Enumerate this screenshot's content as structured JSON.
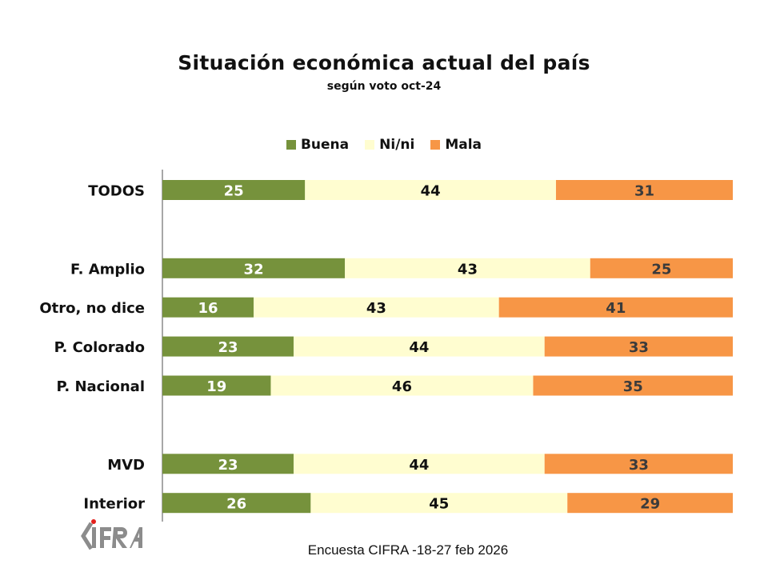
{
  "chart_data": {
    "type": "bar",
    "orientation": "horizontal",
    "stacked": true,
    "percent": true,
    "title": "Situación económica actual del país",
    "subtitle": "según voto oct-24",
    "xlabel": "",
    "ylabel": "",
    "xlim": [
      0,
      100
    ],
    "grid": false,
    "legend_position": "top-center",
    "categories": [
      "TODOS",
      "F. Amplio",
      "Otro, no dice",
      "P. Colorado",
      "P. Nacional",
      "MVD",
      "Interior"
    ],
    "category_groups": [
      [
        "TODOS"
      ],
      [
        "F. Amplio",
        "Otro, no dice",
        "P. Colorado",
        "P. Nacional"
      ],
      [
        "MVD",
        "Interior"
      ]
    ],
    "series": [
      {
        "name": "Buena",
        "color": "#76923C",
        "label_color": "#FFFFFF",
        "values": [
          25,
          32,
          16,
          23,
          19,
          23,
          26
        ]
      },
      {
        "name": "Ni/ni",
        "color": "#FFFDD0",
        "label_color": "#111111",
        "values": [
          44,
          43,
          43,
          44,
          46,
          44,
          45
        ]
      },
      {
        "name": "Mala",
        "color": "#F79646",
        "label_color": "#3B3B3B",
        "values": [
          31,
          25,
          41,
          33,
          35,
          33,
          29
        ]
      }
    ]
  },
  "footer": "Encuesta CIFRA -18-27 feb 2026",
  "logo": {
    "text": "CIFRA",
    "icon": "cifra-logo-icon",
    "accent": "#E3201B",
    "color": "#8C8C8C"
  }
}
